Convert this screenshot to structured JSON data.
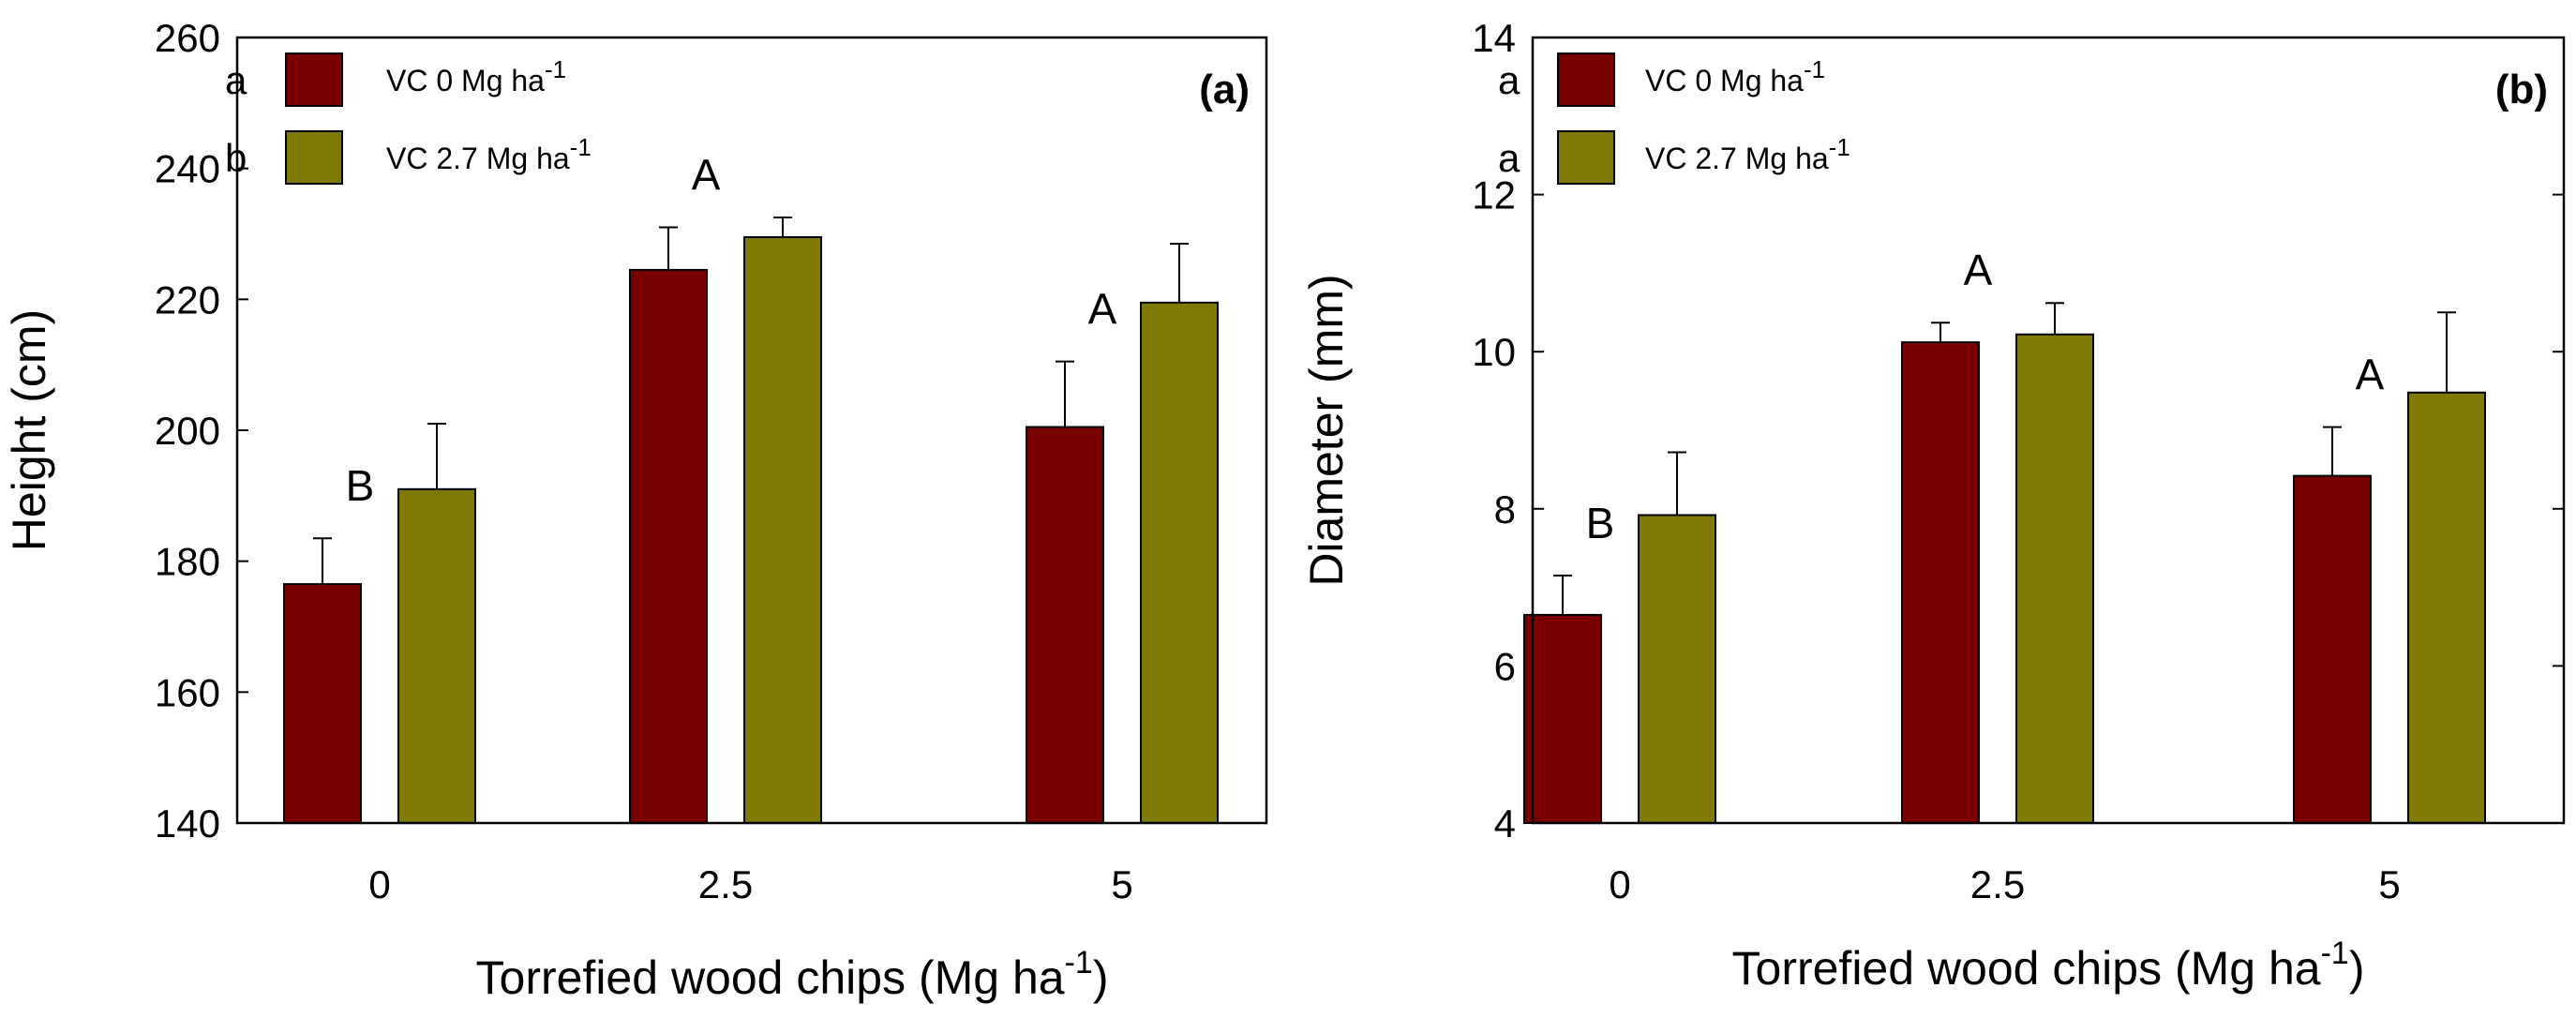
{
  "colors": {
    "vc0": "#7a0000",
    "vc27": "#7f7a05"
  },
  "chart_data": [
    {
      "type": "bar",
      "panel_label": "(a)",
      "ylabel": "Height (cm)",
      "xlabel": {
        "text": "Torrefied wood chips (Mg ha",
        "sup": "-1",
        "close": ")"
      },
      "ylim": [
        140,
        260
      ],
      "yticks": [
        140,
        160,
        180,
        200,
        220,
        240,
        260
      ],
      "categories": [
        "0",
        "2.5",
        "5"
      ],
      "series": [
        {
          "name": "VC 0 Mg ha",
          "sup": "-1",
          "sig": "a",
          "color": "#7a0000",
          "values": [
            176.5,
            224.5,
            200.5
          ],
          "errors": [
            7,
            6.5,
            10
          ]
        },
        {
          "name": "VC 2.7 Mg ha",
          "sup": "-1",
          "sig": "b",
          "color": "#7f7a05",
          "values": [
            191,
            229.5,
            219.5
          ],
          "errors": [
            10,
            3,
            9
          ]
        }
      ],
      "group_letters": [
        "B",
        "A",
        "A"
      ],
      "legend_position": "top-left"
    },
    {
      "type": "bar",
      "panel_label": "(b)",
      "ylabel": "Diameter (mm)",
      "xlabel": {
        "text": "Torrefied wood chips (Mg ha",
        "sup": "-1",
        "close": ")"
      },
      "ylim": [
        4,
        14
      ],
      "yticks": [
        4,
        6,
        8,
        10,
        12,
        14
      ],
      "categories": [
        "0",
        "2.5",
        "5"
      ],
      "series": [
        {
          "name": "VC 0 Mg ha",
          "sup": "-1",
          "sig": "a",
          "color": "#7a0000",
          "values": [
            6.65,
            10.12,
            8.42
          ],
          "errors": [
            0.5,
            0.25,
            0.62
          ]
        },
        {
          "name": "VC 2.7 Mg ha",
          "sup": "-1",
          "sig": "a",
          "color": "#7f7a05",
          "values": [
            7.92,
            10.22,
            9.48
          ],
          "errors": [
            0.8,
            0.4,
            1.02
          ]
        }
      ],
      "group_letters": [
        "B",
        "A",
        "A"
      ],
      "legend_position": "top-left"
    }
  ]
}
